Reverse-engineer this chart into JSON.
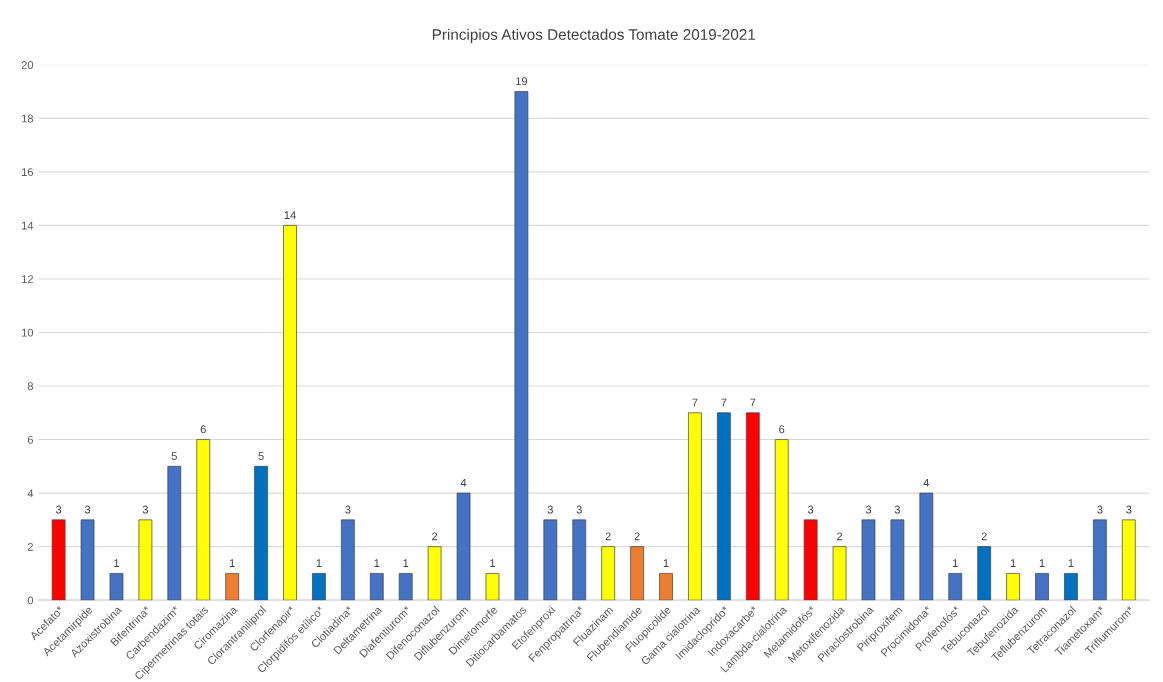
{
  "chart_data": {
    "type": "bar",
    "title": "Principios Ativos Detectados Tomate 2019-2021",
    "categories": [
      "Acefato*",
      "Acetamirpide",
      "Azoxistrobina",
      "Bifentrina*",
      "Carbendazim*",
      "Cipermetrinas totais",
      "Ciromazina",
      "Clorantraniliprol",
      "Clorfenapir*",
      "Clorpidifós etílico*",
      "Clotiadina*",
      "Deltametrina",
      "Diafentiurom*",
      "Difenoconazol",
      "Diflubenzurom",
      "Dimetomorfe",
      "Ditiocarbamatos",
      "Etofenproxi",
      "Fenpropatrina*",
      "Fluazinam",
      "Flubendiamide",
      "Fluopicolide",
      "Gama cialotrina",
      "Imidacloprido*",
      "Indoxacarbe*",
      "Lambda-cialotrina",
      "Metamidofós*",
      "Metoxifenozida",
      "Piraclostrobina",
      "Piriproxifem",
      "Procimidona*",
      "Profenofós*",
      "Tebuconazol",
      "Tebufenozida",
      "Teflubenzurom",
      "Tetraconazol",
      "Tiametoxam*",
      "Triflumurom*"
    ],
    "values": [
      3,
      3,
      1,
      3,
      5,
      6,
      1,
      5,
      14,
      1,
      3,
      1,
      1,
      2,
      4,
      1,
      19,
      3,
      3,
      2,
      2,
      1,
      7,
      7,
      7,
      6,
      3,
      2,
      3,
      3,
      4,
      1,
      2,
      1,
      1,
      1,
      3,
      3
    ],
    "colors": [
      "#ff0000",
      "#4472c4",
      "#4472c4",
      "#ffff00",
      "#4472c4",
      "#ffff00",
      "#ed7d31",
      "#0070c0",
      "#ffff00",
      "#0070c0",
      "#4472c4",
      "#4472c4",
      "#4472c4",
      "#ffff00",
      "#4472c4",
      "#ffff00",
      "#4472c4",
      "#4472c4",
      "#4472c4",
      "#ffff00",
      "#ed7d31",
      "#ed7d31",
      "#ffff00",
      "#0070c0",
      "#ff0000",
      "#ffff00",
      "#ff0000",
      "#ffff00",
      "#4472c4",
      "#4472c4",
      "#4472c4",
      "#4472c4",
      "#0070c0",
      "#ffff00",
      "#4472c4",
      "#0070c0",
      "#4472c4",
      "#ffff00"
    ],
    "ylim": [
      0,
      20
    ],
    "yticks": [
      0,
      2,
      4,
      6,
      8,
      10,
      12,
      14,
      16,
      18,
      20
    ],
    "grid": "y",
    "data_labels": true
  }
}
